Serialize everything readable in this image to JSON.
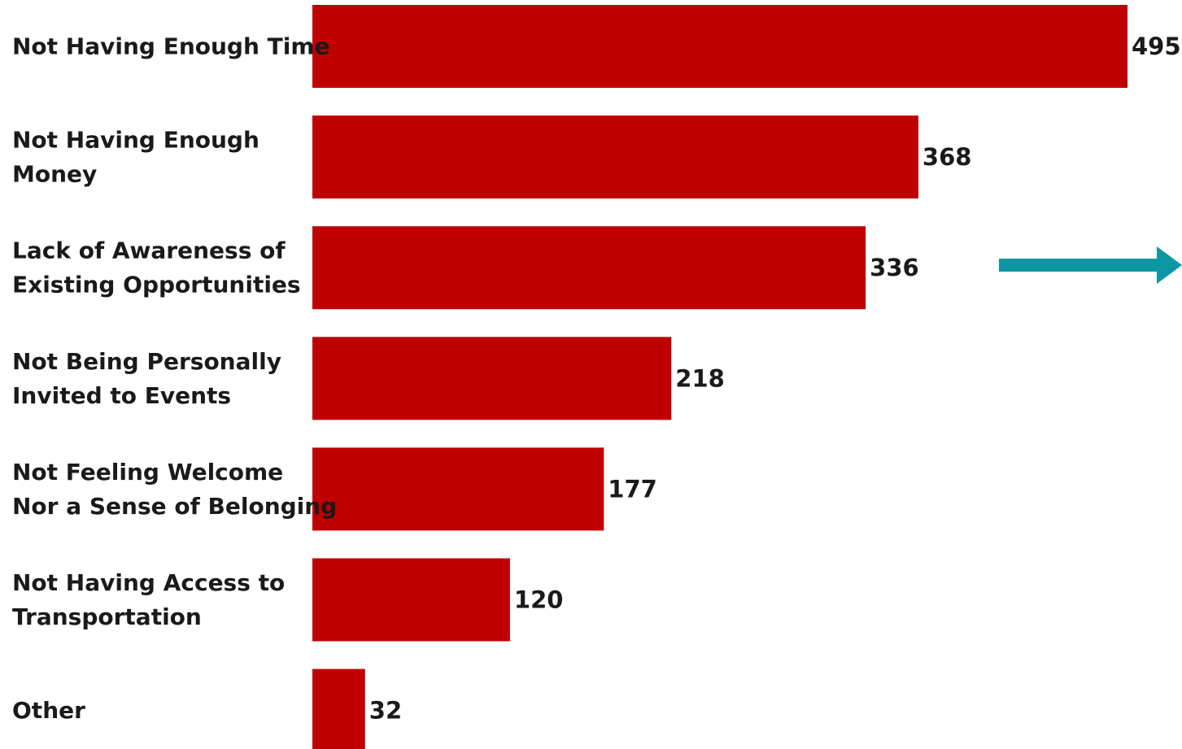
{
  "colors": {
    "bar": "#c00000",
    "arrow": "#0d97a5",
    "text": "#1a1a1a"
  },
  "annotation": {
    "icon": "arrow-right-icon"
  },
  "chart_data": {
    "type": "bar",
    "orientation": "horizontal",
    "categories": [
      [
        "Not Having Enough Time"
      ],
      [
        "Not Having Enough",
        "Money"
      ],
      [
        "Lack of Awareness of",
        "Existing Opportunities"
      ],
      [
        "Not Being Personally",
        "Invited to Events"
      ],
      [
        "Not Feeling Welcome",
        "Nor a Sense of Belonging"
      ],
      [
        "Not Having Access to",
        "Transportation"
      ],
      [
        "Other"
      ]
    ],
    "values": [
      495,
      368,
      336,
      218,
      177,
      120,
      32
    ],
    "value_labels": [
      "495",
      "368",
      "336",
      "218",
      "177",
      "120",
      "32"
    ],
    "title": "",
    "xlabel": "",
    "ylabel": "",
    "xlim": [
      0,
      495
    ],
    "grid": false,
    "legend": "none"
  }
}
